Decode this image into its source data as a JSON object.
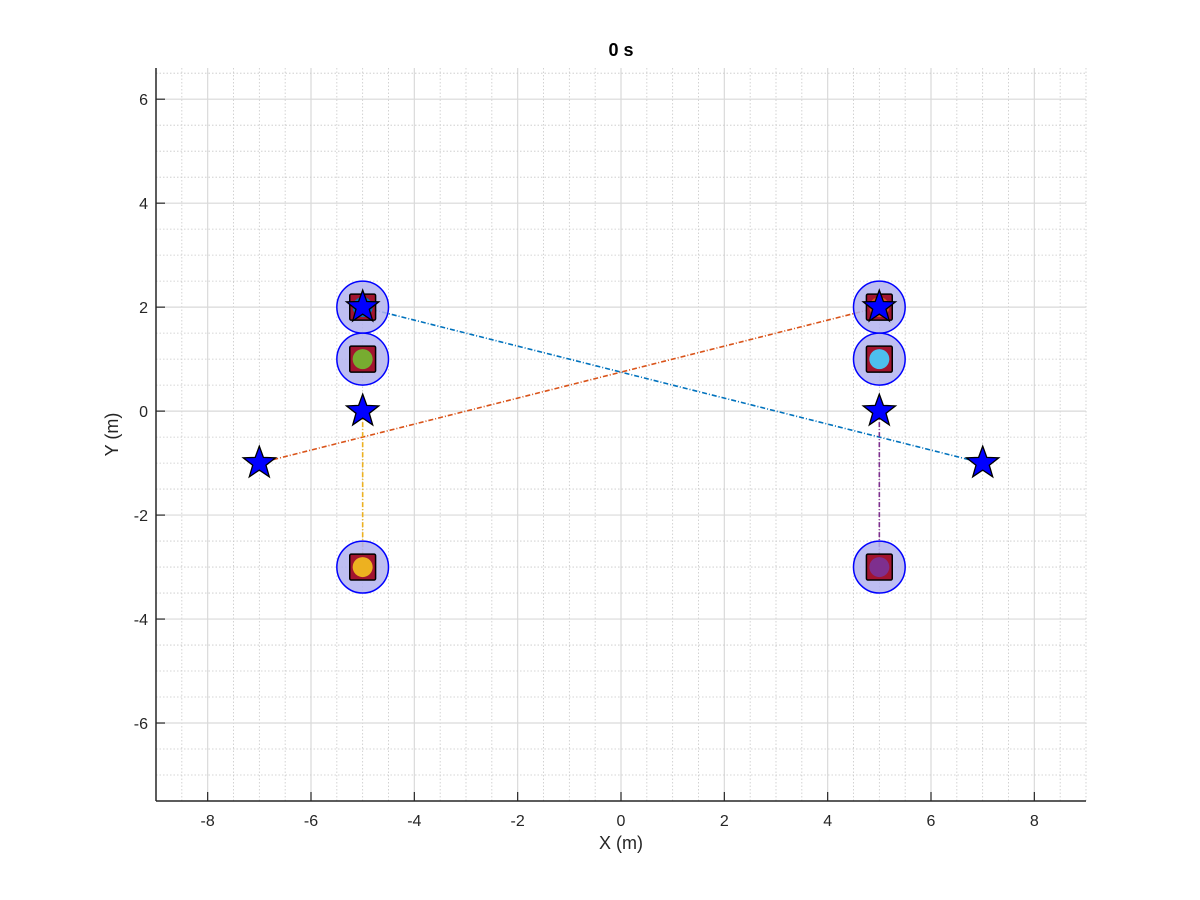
{
  "chart_data": {
    "type": "scatter",
    "title": "0 s",
    "xlabel": "X (m)",
    "ylabel": "Y (m)",
    "xlim": [
      -9,
      9
    ],
    "ylim": [
      -7.5,
      6.6
    ],
    "xticks": [
      -8,
      -6,
      -4,
      -2,
      0,
      2,
      4,
      6,
      8
    ],
    "yticks": [
      -6,
      -4,
      -2,
      0,
      2,
      4,
      6
    ],
    "xtick_labels": [
      "-8",
      "-6",
      "-4",
      "-2",
      "0",
      "2",
      "4",
      "6",
      "8"
    ],
    "ytick_labels": [
      "-6",
      "-4",
      "-2",
      "0",
      "2",
      "4",
      "6"
    ],
    "grid": "major and minor",
    "safety_radius": 0.5,
    "colors": {
      "robot_square": "#a2142f",
      "safety_circle_fill": "#b3b3ee",
      "safety_circle_edge": "#0000ff",
      "goal_star": "#0000ff"
    },
    "robots": [
      {
        "x": -5,
        "y": 2,
        "color": "#0072bd"
      },
      {
        "x": -5,
        "y": 1,
        "color": "#77ac30"
      },
      {
        "x": -5,
        "y": -3,
        "color": "#edb120"
      },
      {
        "x": 5,
        "y": 2,
        "color": "#d95319"
      },
      {
        "x": 5,
        "y": 1,
        "color": "#4dbeee"
      },
      {
        "x": 5,
        "y": -3,
        "color": "#7e2f8e"
      }
    ],
    "goals": [
      {
        "x": -5,
        "y": 2
      },
      {
        "x": 5,
        "y": 2
      },
      {
        "x": -5,
        "y": 0
      },
      {
        "x": 5,
        "y": 0
      },
      {
        "x": -7,
        "y": -1
      },
      {
        "x": 7,
        "y": -1
      }
    ],
    "paths": [
      {
        "from": [
          -5,
          2
        ],
        "to": [
          7,
          -1
        ],
        "color": "#0072bd"
      },
      {
        "from": [
          5,
          2
        ],
        "to": [
          -7,
          -1
        ],
        "color": "#d95319"
      },
      {
        "from": [
          -5,
          -3
        ],
        "to": [
          -5,
          0
        ],
        "color": "#edb120"
      },
      {
        "from": [
          5,
          -3
        ],
        "to": [
          5,
          0
        ],
        "color": "#7e2f8e"
      }
    ]
  }
}
